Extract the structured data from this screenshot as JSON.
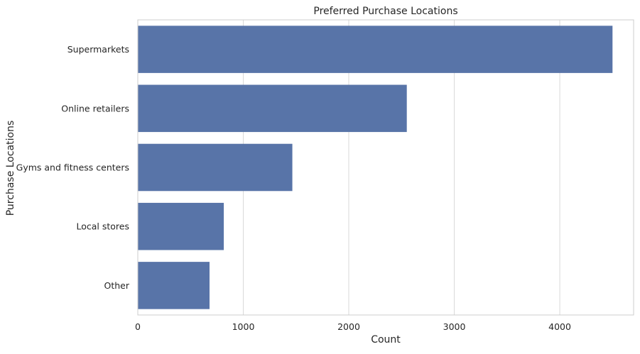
{
  "chart_data": {
    "type": "bar",
    "orientation": "horizontal",
    "title": "Preferred Purchase Locations",
    "xlabel": "Count",
    "ylabel": "Purchase Locations",
    "categories": [
      "Supermarkets",
      "Online retailers",
      "Gyms and fitness centers",
      "Local stores",
      "Other"
    ],
    "values": [
      4500,
      2550,
      1465,
      815,
      680
    ],
    "xlim": [
      0,
      4700
    ],
    "xticks": [
      0,
      1000,
      2000,
      3000,
      4000
    ],
    "xtick_labels": [
      "0",
      "1000",
      "2000",
      "3000",
      "4000"
    ],
    "grid": "x",
    "legend": "none",
    "colors": {
      "bar": "#5874a8",
      "grid": "#d9d9d9",
      "spine": "#cccccc",
      "text": "#262626"
    }
  }
}
